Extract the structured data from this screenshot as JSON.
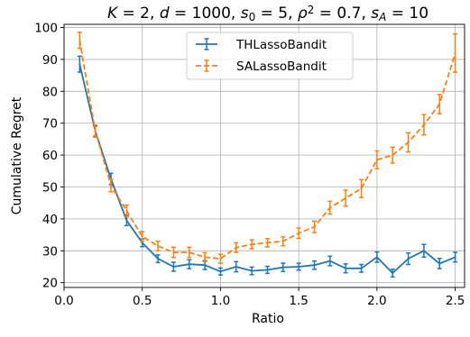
{
  "chart_data": {
    "type": "line",
    "title": "K = 2, d = 1000, s₀ = 5, ρ² = 0.7, sₐ = 10",
    "title_parts": [
      {
        "text": "K",
        "italic": true
      },
      {
        "text": " = 2, "
      },
      {
        "text": "d",
        "italic": true
      },
      {
        "text": " = 1000, "
      },
      {
        "text": "s",
        "italic": true
      },
      {
        "text": "0",
        "sub": true
      },
      {
        "text": " = 5, "
      },
      {
        "text": "ρ",
        "italic": true
      },
      {
        "text": "2",
        "sup": true
      },
      {
        "text": " = 0.7, "
      },
      {
        "text": "s",
        "italic": true
      },
      {
        "text": "A",
        "sub": true,
        "italic": true
      },
      {
        "text": " = 10"
      }
    ],
    "xlabel": "Ratio",
    "ylabel": "Cumulative Regret",
    "xlim": [
      0.0,
      2.56
    ],
    "ylim": [
      18.5,
      101
    ],
    "xticks": [
      0.0,
      0.5,
      1.0,
      1.5,
      2.0,
      2.5
    ],
    "xtick_labels": [
      "0.0",
      "0.5",
      "1.0",
      "1.5",
      "2.0",
      "2.5"
    ],
    "yticks": [
      20,
      30,
      40,
      50,
      60,
      70,
      80,
      90,
      100
    ],
    "ytick_labels": [
      "20",
      "30",
      "40",
      "50",
      "60",
      "70",
      "80",
      "90",
      "100"
    ],
    "grid": true,
    "legend_position": "top-center",
    "x": [
      0.1,
      0.2,
      0.3,
      0.4,
      0.5,
      0.6,
      0.7,
      0.8,
      0.9,
      1.0,
      1.1,
      1.2,
      1.3,
      1.4,
      1.5,
      1.6,
      1.7,
      1.8,
      1.9,
      2.0,
      2.1,
      2.2,
      2.3,
      2.4,
      2.5
    ],
    "series": [
      {
        "name": "THLassoBandit",
        "color": "#1f77b4",
        "dash": "solid",
        "values": [
          88.5,
          67.5,
          52.5,
          39.5,
          32.5,
          27.5,
          25.0,
          25.8,
          25.5,
          23.5,
          25.0,
          23.7,
          24.0,
          24.8,
          25.0,
          25.5,
          26.8,
          24.5,
          24.5,
          28.0,
          23.0,
          27.5,
          30.0,
          26.0,
          28.0
        ],
        "errors": [
          2.5,
          1.8,
          1.8,
          1.6,
          1.2,
          1.2,
          1.4,
          1.4,
          1.4,
          1.1,
          1.6,
          1.2,
          1.1,
          1.3,
          1.1,
          1.3,
          1.5,
          1.4,
          1.2,
          1.6,
          1.2,
          1.8,
          2.0,
          1.6,
          1.5
        ]
      },
      {
        "name": "SALassoBandit",
        "color": "#ff7f0e",
        "dash": "dashed",
        "values": [
          96.0,
          67.5,
          50.5,
          42.5,
          34.5,
          31.5,
          29.5,
          29.5,
          28.0,
          27.5,
          31.0,
          32.0,
          32.5,
          33.0,
          35.5,
          37.5,
          43.5,
          46.5,
          49.5,
          58.5,
          60.0,
          64.0,
          69.5,
          76.0,
          92.0
        ]
      }
    ],
    "series_errors": [
      [],
      [
        2.5,
        1.5,
        2.0,
        1.8,
        1.5,
        1.5,
        1.6,
        1.6,
        1.4,
        1.4,
        1.5,
        1.4,
        1.3,
        1.4,
        1.6,
        1.8,
        2.0,
        2.5,
        2.8,
        2.8,
        2.5,
        3.0,
        3.2,
        3.0,
        6.0
      ]
    ]
  }
}
